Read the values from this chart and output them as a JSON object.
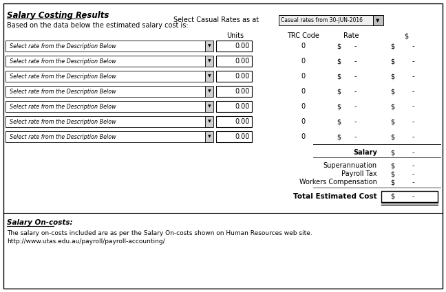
{
  "title": "Salary Costing Results",
  "subtitle": "Based on the data below the estimated salary cost is:",
  "select_label": "Select Casual Rates as at",
  "dropdown_text": "Casual rates from 30-JUN-2016",
  "col_headers": [
    "Units",
    "TRC Code",
    "Rate",
    "$"
  ],
  "dropdown_row_label": "Select rate from the Description Below",
  "num_rows": 7,
  "row_values": [
    "0.00",
    "0.00",
    "0.00",
    "0.00",
    "0.00",
    "0.00",
    "0.00"
  ],
  "row_trc": [
    "0",
    "0",
    "0",
    "0",
    "0",
    "0",
    "0"
  ],
  "oncost_labels": [
    "Superannuation",
    "Payroll Tax",
    "Workers Compensation"
  ],
  "footer_title": "Salary On-costs:",
  "footer_text1": "The salary on-costs included are as per the Salary On-costs shown on Human Resources web site.",
  "footer_text2": "http://www.utas.edu.au/payroll/payroll-accounting/",
  "bg_color": "#ffffff",
  "border_color": "#000000",
  "dropdown_bg": "#f0f0f0",
  "arrow_bg": "#c0c0c0",
  "row_arrow_bg": "#d0d0d0"
}
